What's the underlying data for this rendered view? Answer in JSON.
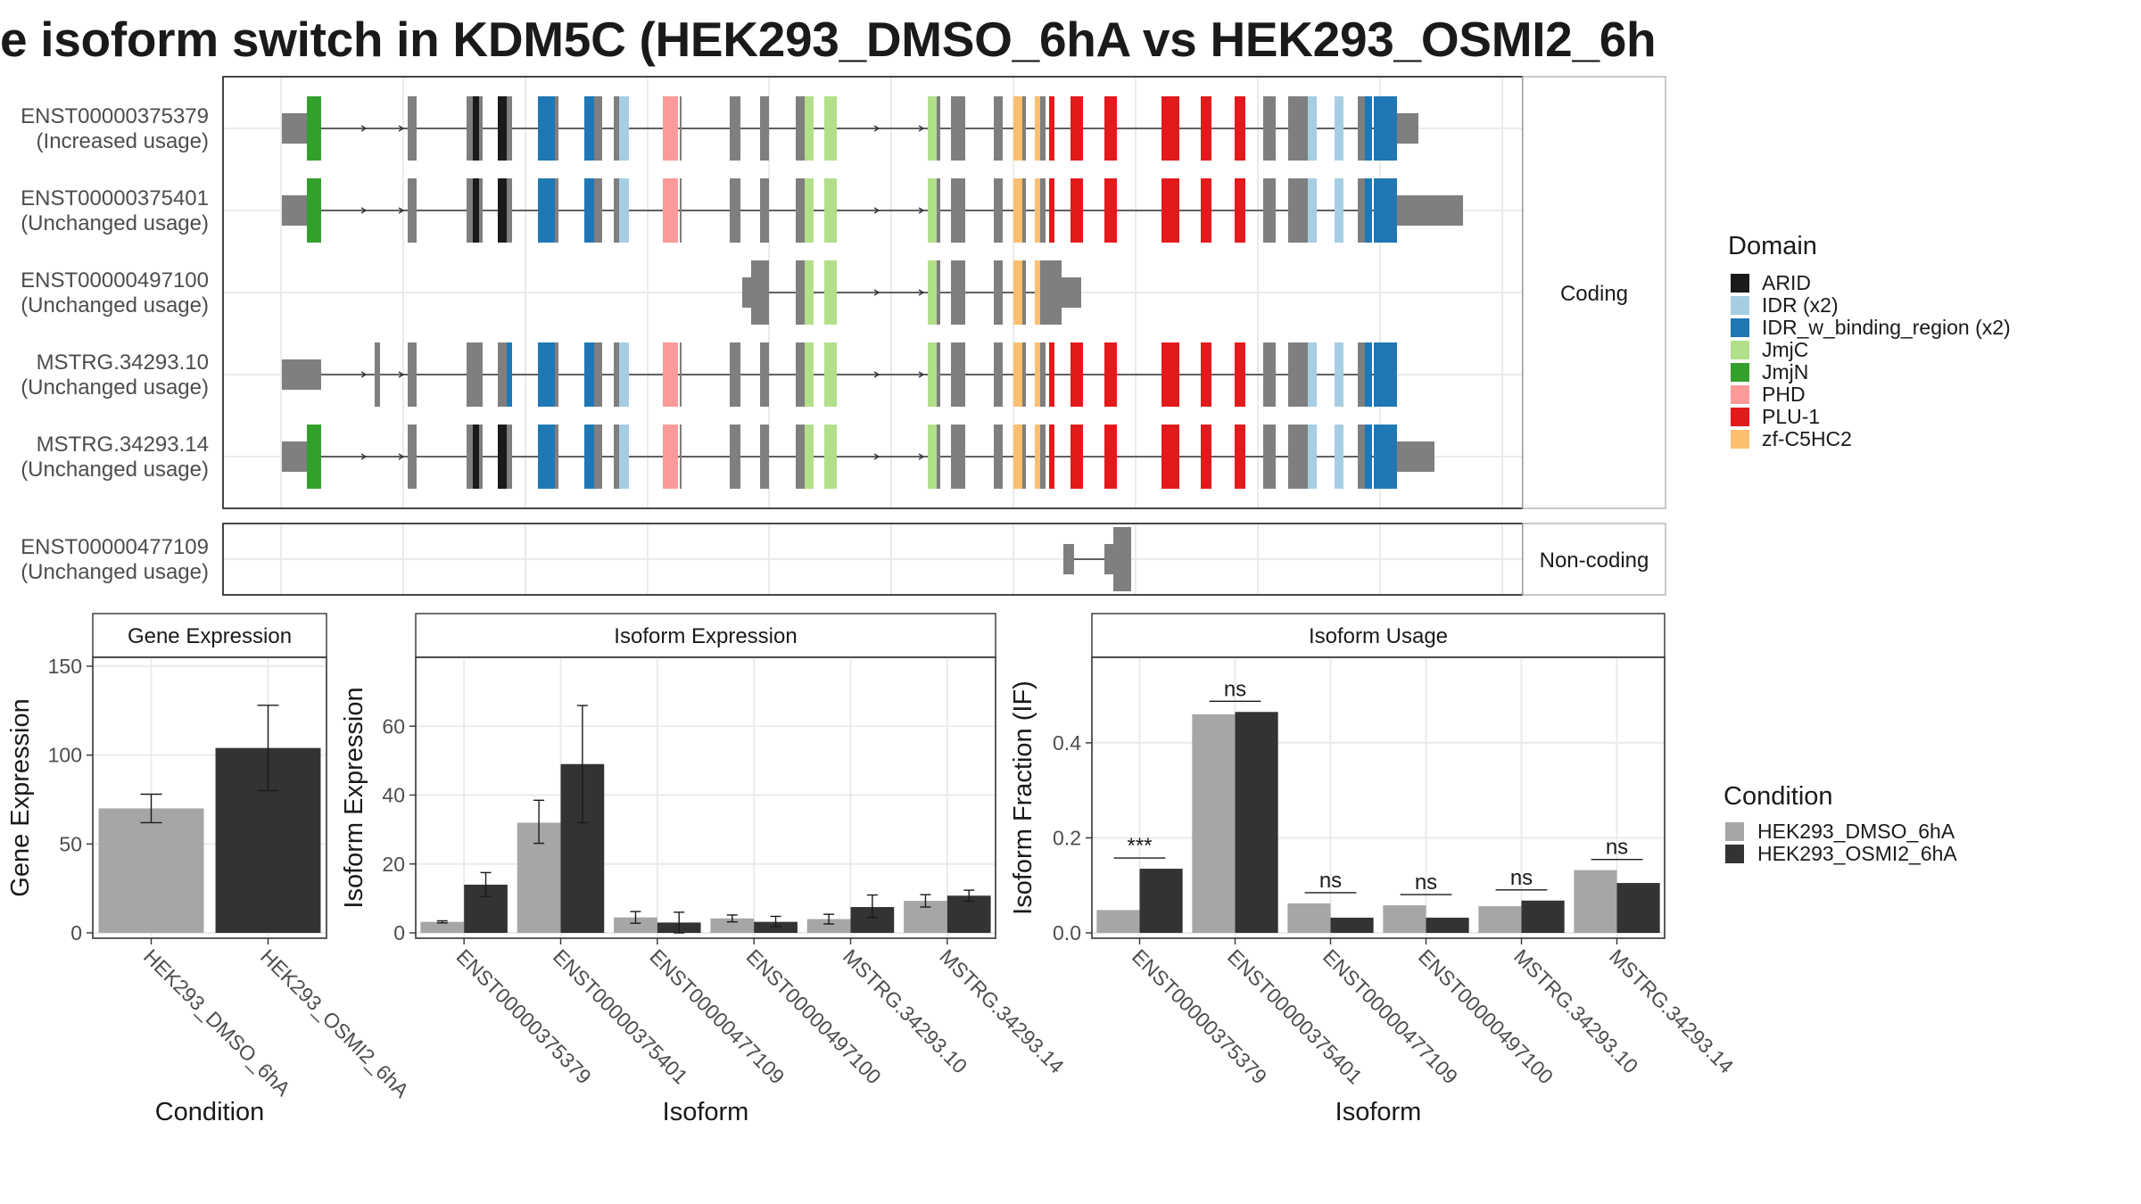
{
  "title": "e isoform switch in KDM5C (HEK293_DMSO_6hA vs HEK293_OSMI2_6h",
  "colors": {
    "dmso": "#a6a6a6",
    "osmi": "#333333",
    "exon": "#7f7f7f",
    "ARID": "#1a1a1a",
    "IDR": "#a6cee3",
    "IDR_w": "#1f78b4",
    "JmjC": "#b2df8a",
    "JmjN": "#33a02c",
    "PHD": "#fb9a99",
    "PLU": "#e31a1c",
    "zf": "#fdbf6f"
  },
  "chart_data": [
    {
      "type": "gene-structure",
      "panel_labels": [
        "Coding",
        "Non-coding"
      ],
      "isoforms": [
        {
          "id": "ENST00000375379",
          "usage": "(Increased usage)",
          "group": "coding",
          "template": "full",
          "utr3": "short"
        },
        {
          "id": "ENST00000375401",
          "usage": "(Unchanged usage)",
          "group": "coding",
          "template": "full",
          "utr3": "long"
        },
        {
          "id": "ENST00000497100",
          "usage": "(Unchanged usage)",
          "group": "coding",
          "template": "mid"
        },
        {
          "id": "MSTRG.34293.10",
          "usage": "(Unchanged usage)",
          "group": "coding",
          "template": "alt5"
        },
        {
          "id": "MSTRG.34293.14",
          "usage": "(Unchanged usage)",
          "group": "coding",
          "template": "full",
          "utr3": "medium"
        },
        {
          "id": "ENST00000477109",
          "usage": "(Unchanged usage)",
          "group": "noncoding",
          "template": "nc"
        }
      ],
      "legend": {
        "title": "Domain",
        "items": [
          {
            "label": "ARID",
            "key": "ARID"
          },
          {
            "label": "IDR (x2)",
            "key": "IDR"
          },
          {
            "label": "IDR_w_binding_region (x2)",
            "key": "IDR_w"
          },
          {
            "label": "JmjC",
            "key": "JmjC"
          },
          {
            "label": "JmjN",
            "key": "JmjN"
          },
          {
            "label": "PHD",
            "key": "PHD"
          },
          {
            "label": "PLU-1",
            "key": "PLU"
          },
          {
            "label": "zf-C5HC2",
            "key": "zf"
          }
        ]
      }
    },
    {
      "type": "bar",
      "title": "Gene Expression",
      "xlabel": "Condition",
      "ylabel": "Gene Expression",
      "ylim": [
        0,
        155
      ],
      "yticks": [
        0,
        50,
        100,
        150
      ],
      "categories": [
        "HEK293_DMSO_6hA",
        "HEK293_OSMI2_6hA"
      ],
      "values": [
        70,
        104
      ],
      "errors": [
        [
          62,
          78
        ],
        [
          80,
          128
        ]
      ],
      "colors": [
        "dmso",
        "osmi"
      ]
    },
    {
      "type": "bar",
      "title": "Isoform Expression",
      "xlabel": "Isoform",
      "ylabel": "Isoform Expression",
      "ylim": [
        0,
        80
      ],
      "yticks": [
        0,
        20,
        40,
        60
      ],
      "categories": [
        "ENST00000375379",
        "ENST00000375401",
        "ENST00000477109",
        "ENST00000497100",
        "MSTRG.34293.10",
        "MSTRG.34293.14"
      ],
      "series": [
        {
          "name": "HEK293_DMSO_6hA",
          "values": [
            3.2,
            32,
            4.5,
            4.2,
            4,
            9.3
          ],
          "err_low": [
            2.9,
            26,
            2.8,
            3.2,
            2.6,
            7.5
          ],
          "err_high": [
            3.5,
            38.5,
            6.2,
            5.2,
            5.4,
            11.1
          ]
        },
        {
          "name": "HEK293_OSMI2_6hA",
          "values": [
            14,
            49,
            3,
            3.2,
            7.5,
            10.8
          ],
          "err_low": [
            10.5,
            32,
            0,
            1.8,
            4.5,
            9.2
          ],
          "err_high": [
            17.5,
            66,
            6,
            4.8,
            11,
            12.4
          ]
        }
      ]
    },
    {
      "type": "bar",
      "title": "Isoform Usage",
      "xlabel": "Isoform",
      "ylabel": "Isoform Fraction (IF)",
      "ylim": [
        0,
        0.58
      ],
      "yticks": [
        0.0,
        0.2,
        0.4
      ],
      "ytick_labels": [
        "0.0",
        "0.2",
        "0.4"
      ],
      "categories": [
        "ENST00000375379",
        "ENST00000375401",
        "ENST00000477109",
        "ENST00000497100",
        "MSTRG.34293.10",
        "MSTRG.34293.14"
      ],
      "series": [
        {
          "name": "HEK293_DMSO_6hA",
          "values": [
            0.048,
            0.46,
            0.062,
            0.058,
            0.056,
            0.132
          ]
        },
        {
          "name": "HEK293_OSMI2_6hA",
          "values": [
            0.135,
            0.465,
            0.032,
            0.032,
            0.068,
            0.105
          ]
        }
      ],
      "significance": [
        "***",
        "ns",
        "ns",
        "ns",
        "ns",
        "ns"
      ]
    }
  ],
  "condition_legend": {
    "title": "Condition",
    "items": [
      {
        "label": "HEK293_DMSO_6hA",
        "key": "dmso"
      },
      {
        "label": "HEK293_OSMI2_6hA",
        "key": "osmi"
      }
    ]
  }
}
